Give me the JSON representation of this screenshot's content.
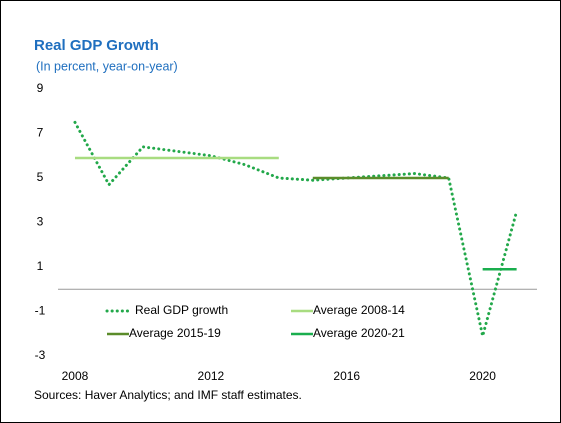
{
  "chart_data": {
    "type": "line",
    "title": "Real GDP Growth",
    "subtitle": "(In percent, year-on-year)",
    "source": "Sources: Haver Analytics; and IMF staff estimates.",
    "xlim": [
      2007.5,
      2021.6
    ],
    "xticks": [
      2008,
      2012,
      2016,
      2020
    ],
    "ylim": [
      -3,
      9
    ],
    "yticks": [
      9,
      7,
      5,
      3,
      1,
      -1,
      -3
    ],
    "series": [
      {
        "name": "Real GDP growth",
        "color": "#22a84a",
        "dash": "dotted",
        "x": [
          2008,
          2009,
          2010,
          2011,
          2012,
          2013,
          2014,
          2015,
          2016,
          2017,
          2018,
          2019,
          2020,
          2021
        ],
        "values": [
          7.5,
          4.7,
          6.4,
          6.2,
          6.0,
          5.6,
          5.0,
          4.9,
          5.0,
          5.1,
          5.2,
          5.0,
          -2.1,
          3.5
        ]
      },
      {
        "name": "Average 2008-14",
        "color": "#a8dc80",
        "x": [
          2008,
          2014
        ],
        "values": [
          5.9,
          5.9
        ]
      },
      {
        "name": "Average 2015-19",
        "color": "#5b8c2a",
        "x": [
          2015,
          2019
        ],
        "values": [
          5.0,
          5.0
        ]
      },
      {
        "name": "Average 2020-21",
        "color": "#1aae4e",
        "x": [
          2020,
          2021
        ],
        "values": [
          0.9,
          0.9
        ]
      }
    ]
  }
}
